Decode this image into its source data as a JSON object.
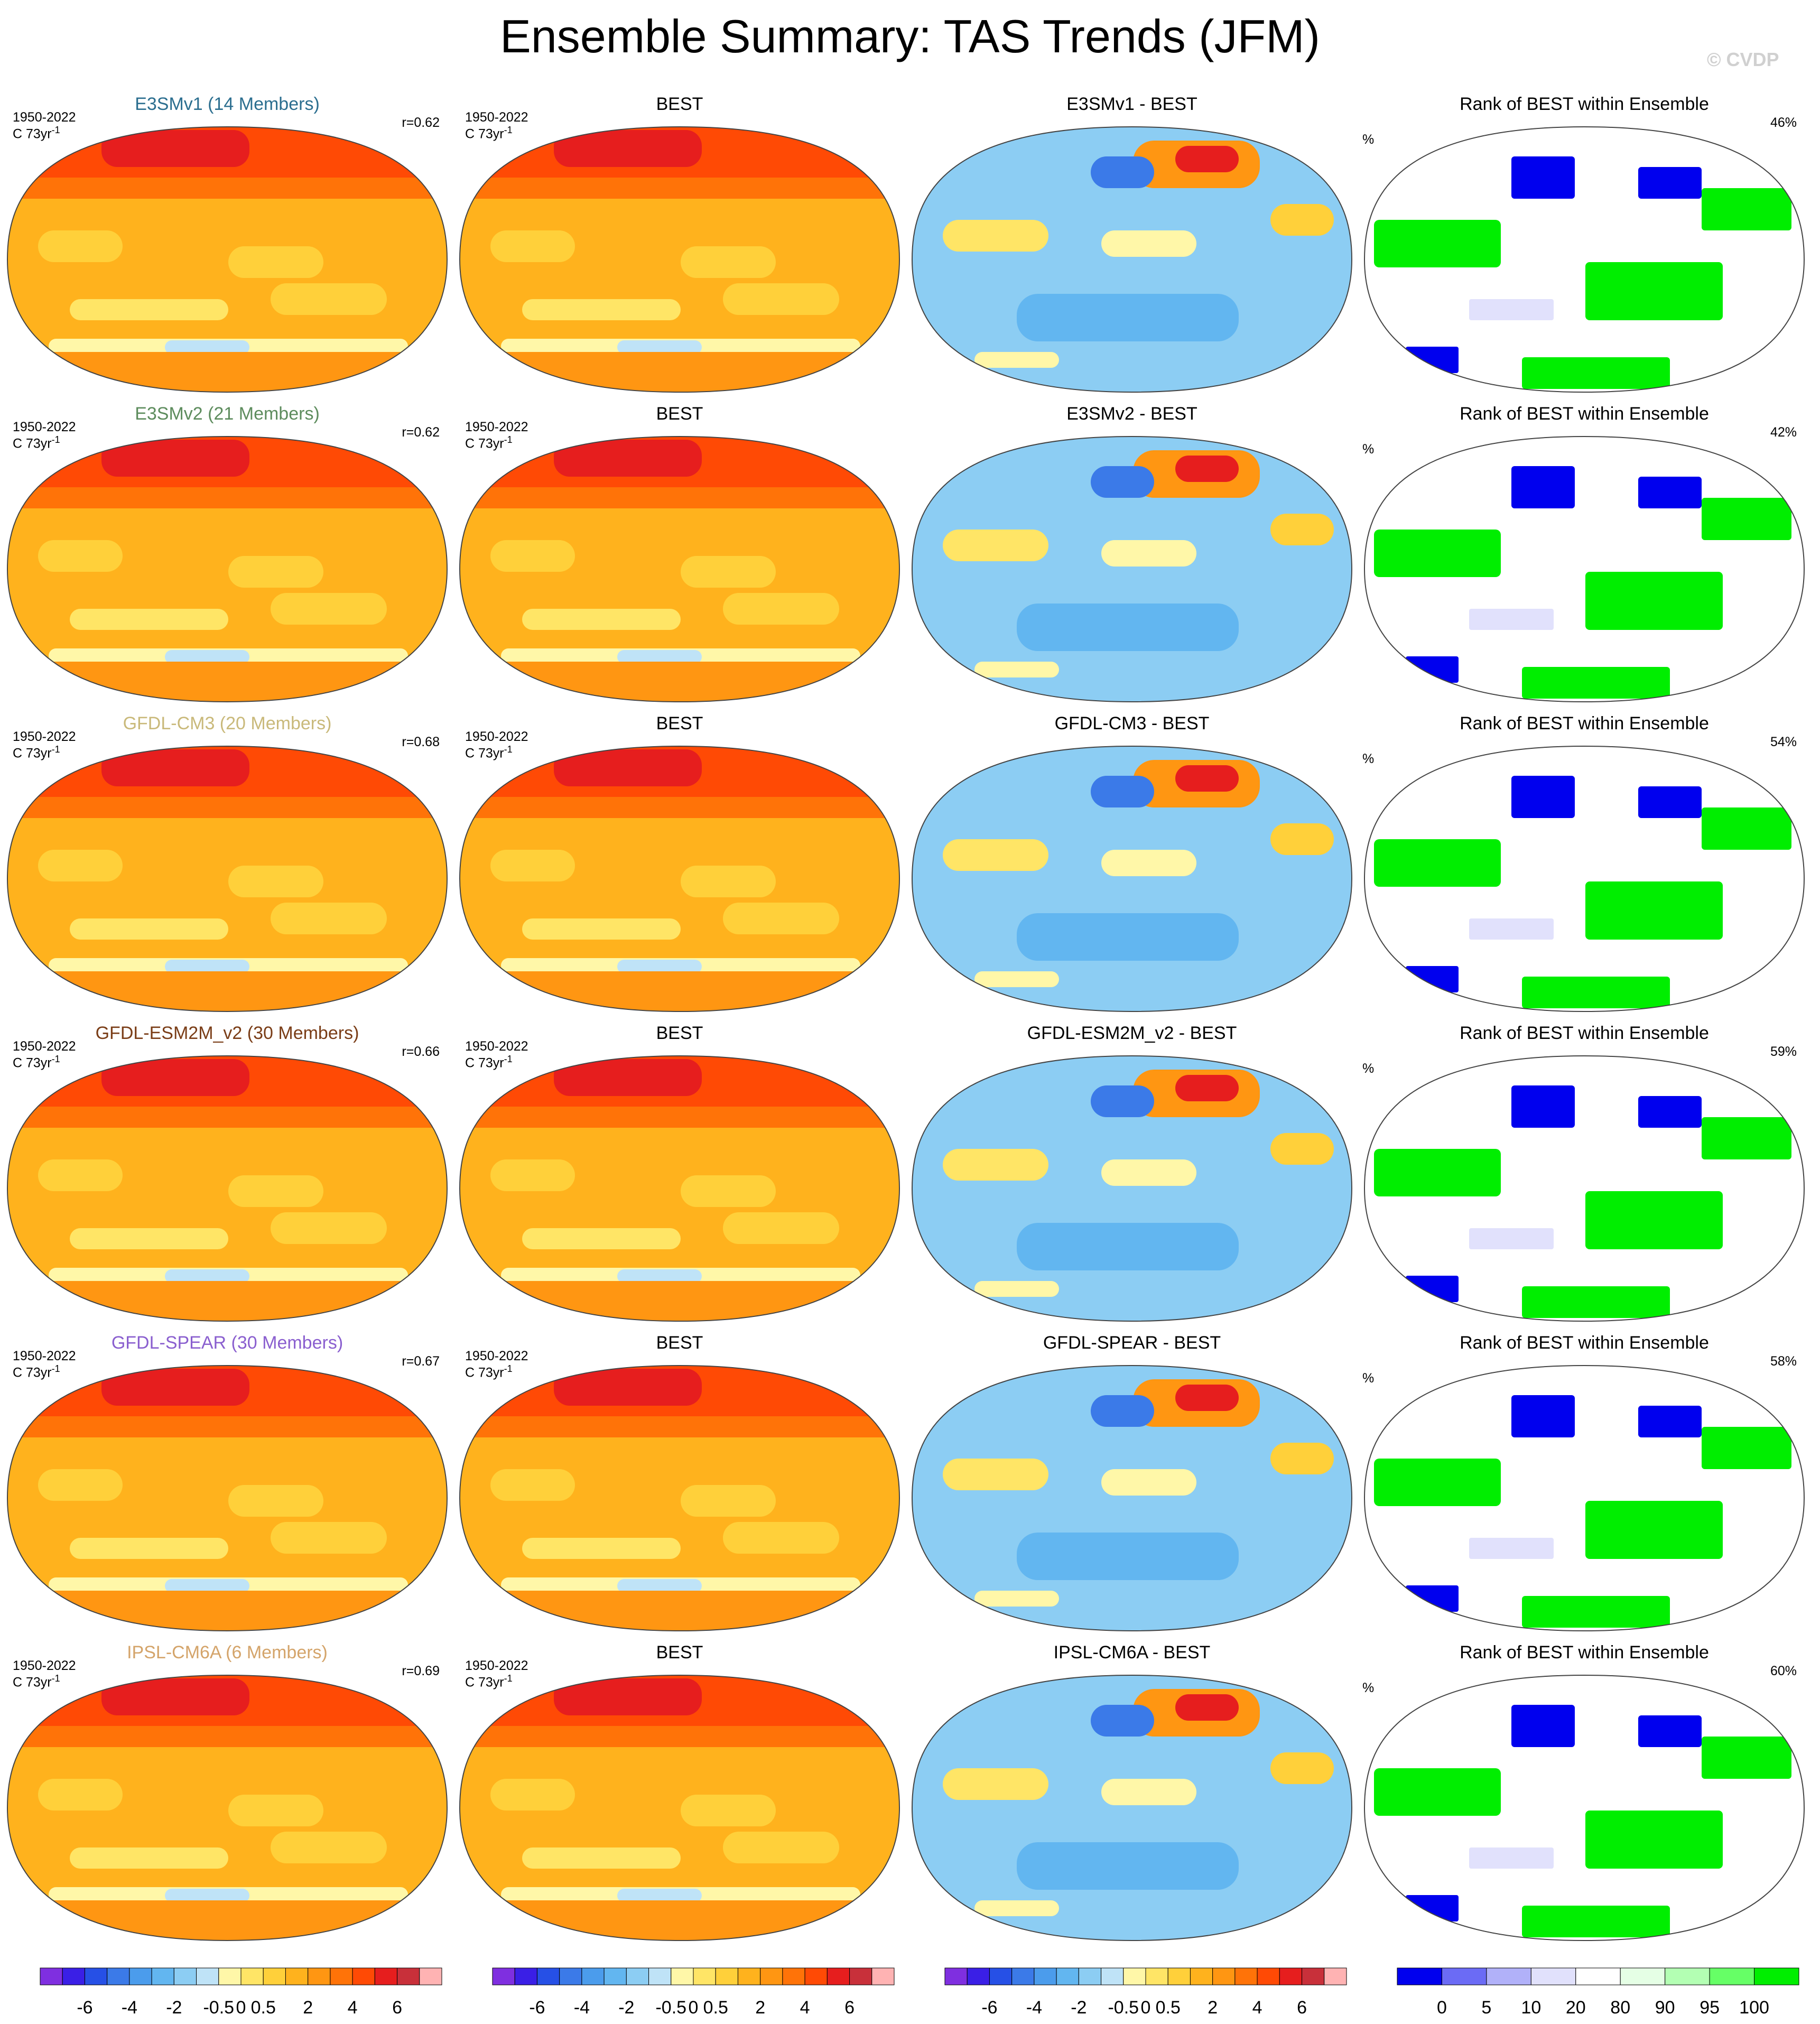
{
  "title": "Ensemble Summary: TAS Trends (JFM)",
  "watermark": "© CVDP",
  "period": "1950-2022",
  "units_text": "C 73yr",
  "units_sup": "-1",
  "pct_symbol": "%",
  "rank_title": "Rank of BEST within Ensemble",
  "obs_title": "BEST",
  "rows": [
    {
      "model_title": "E3SMv1 (14 Members)",
      "model_color": "#2b6e8f",
      "r": "r=0.62",
      "diff_title": "E3SMv1 - BEST",
      "rank_pct": "46%"
    },
    {
      "model_title": "E3SMv2 (21 Members)",
      "model_color": "#5d8c5d",
      "r": "r=0.62",
      "diff_title": "E3SMv2 - BEST",
      "rank_pct": "42%"
    },
    {
      "model_title": "GFDL-CM3 (20 Members)",
      "model_color": "#c9b97a",
      "r": "r=0.68",
      "diff_title": "GFDL-CM3 - BEST",
      "rank_pct": "54%"
    },
    {
      "model_title": "GFDL-ESM2M_v2 (30 Members)",
      "model_color": "#7a3d17",
      "r": "r=0.66",
      "diff_title": "GFDL-ESM2M_v2 - BEST",
      "rank_pct": "59%"
    },
    {
      "model_title": "GFDL-SPEAR (30 Members)",
      "model_color": "#8a5fcf",
      "r": "r=0.67",
      "diff_title": "GFDL-SPEAR - BEST",
      "rank_pct": "58%"
    },
    {
      "model_title": "IPSL-CM6A (6 Members)",
      "model_color": "#d4a46a",
      "r": "r=0.69",
      "diff_title": "IPSL-CM6A - BEST",
      "rank_pct": "60%"
    }
  ],
  "chart_data": {
    "type": "heatmap",
    "projection": "Robinson (global, Pacific-centred)",
    "layout": "6 rows x 4 columns",
    "columns": [
      "model ensemble mean trend",
      "BEST observed trend",
      "model minus BEST",
      "rank of BEST within ensemble"
    ],
    "trend_colorbar": {
      "labels": [
        "-6",
        "-4",
        "-2",
        "-0.5",
        "0",
        "0.5",
        "2",
        "4",
        "6"
      ],
      "colors": [
        "#7f2fe0",
        "#3a1fe6",
        "#2650e6",
        "#3b7ae8",
        "#4b9cec",
        "#62b6f0",
        "#8ccdf3",
        "#bfe3f7",
        "#fff7a8",
        "#ffe566",
        "#ffd03a",
        "#ffb21d",
        "#ff9612",
        "#ff7308",
        "#ff4a05",
        "#e61e1e",
        "#c8303a",
        "#ffb3b3"
      ]
    },
    "rank_colorbar": {
      "labels": [
        "0",
        "5",
        "10",
        "20",
        "80",
        "90",
        "95",
        "100"
      ],
      "colors": [
        "#0000ee",
        "#6b6bf5",
        "#b1b1f9",
        "#e1e1fc",
        "#ffffff",
        "#e5ffe5",
        "#b3ffb3",
        "#66ff66",
        "#00ee00"
      ]
    }
  }
}
